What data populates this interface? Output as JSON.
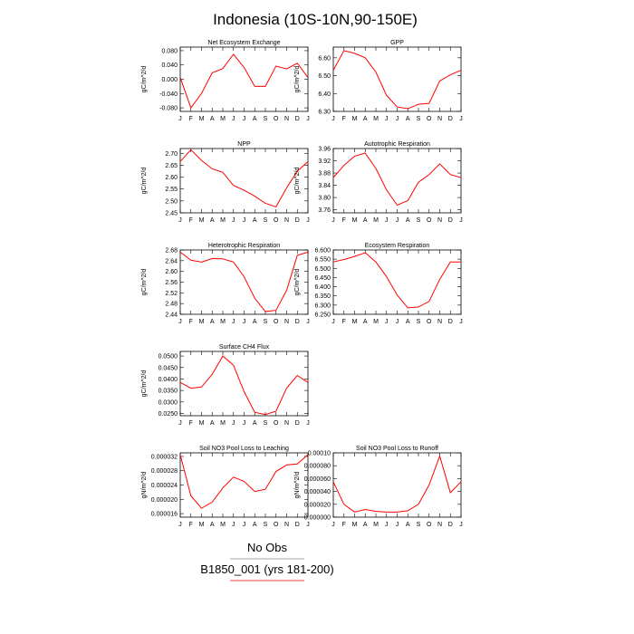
{
  "title": "Indonesia (10S-10N,90-150E)",
  "legend": {
    "items": [
      {
        "label": "No Obs",
        "color": "#888888"
      },
      {
        "label": "B1850_001 (yrs 181-200)",
        "color": "#ff0000"
      }
    ]
  },
  "chart_data": [
    {
      "type": "line",
      "title": "Net Ecosystem Exchange",
      "ylabel": "gC/m^2/d",
      "x": [
        "J",
        "F",
        "M",
        "A",
        "M",
        "J",
        "J",
        "A",
        "S",
        "O",
        "N",
        "D",
        "J"
      ],
      "ylim": [
        -0.09,
        0.09
      ],
      "yticks": [
        -0.08,
        -0.04,
        0.0,
        0.04,
        0.08
      ],
      "ytick_labels": [
        "-0.080",
        "-0.040",
        "0.000",
        "0.040",
        "0.080"
      ],
      "series": [
        {
          "values": [
            0.005,
            -0.08,
            -0.04,
            0.018,
            0.03,
            0.07,
            0.033,
            -0.02,
            -0.02,
            0.037,
            0.029,
            0.045,
            0.005
          ],
          "color": "#ff0000"
        }
      ]
    },
    {
      "type": "line",
      "title": "GPP",
      "ylabel": "gC/m^2/d",
      "x": [
        "J",
        "F",
        "M",
        "A",
        "M",
        "J",
        "J",
        "A",
        "S",
        "O",
        "N",
        "D",
        "J"
      ],
      "ylim": [
        6.3,
        6.66
      ],
      "yticks": [
        6.3,
        6.4,
        6.5,
        6.6
      ],
      "ytick_labels": [
        "6.30",
        "6.40",
        "6.50",
        "6.60"
      ],
      "series": [
        {
          "values": [
            6.53,
            6.64,
            6.625,
            6.6,
            6.52,
            6.39,
            6.325,
            6.315,
            6.34,
            6.345,
            6.47,
            6.505,
            6.53
          ],
          "color": "#ff0000"
        }
      ]
    },
    {
      "type": "line",
      "title": "NPP",
      "ylabel": "gC/m^2/d",
      "x": [
        "J",
        "F",
        "M",
        "A",
        "M",
        "J",
        "J",
        "A",
        "S",
        "O",
        "N",
        "D",
        "J"
      ],
      "ylim": [
        2.45,
        2.72
      ],
      "yticks": [
        2.45,
        2.5,
        2.55,
        2.6,
        2.65,
        2.7
      ],
      "ytick_labels": [
        "2.45",
        "2.50",
        "2.55",
        "2.60",
        "2.65",
        "2.70"
      ],
      "series": [
        {
          "values": [
            2.665,
            2.715,
            2.67,
            2.635,
            2.62,
            2.565,
            2.545,
            2.52,
            2.49,
            2.475,
            2.555,
            2.625,
            2.665
          ],
          "color": "#ff0000"
        }
      ]
    },
    {
      "type": "line",
      "title": "Autotrophic Respiration",
      "ylabel": "gC/m^2/d",
      "x": [
        "J",
        "F",
        "M",
        "A",
        "M",
        "J",
        "J",
        "A",
        "S",
        "O",
        "N",
        "D",
        "J"
      ],
      "ylim": [
        3.75,
        3.96
      ],
      "yticks": [
        3.76,
        3.8,
        3.84,
        3.88,
        3.92,
        3.96
      ],
      "ytick_labels": [
        "3.76",
        "3.80",
        "3.84",
        "3.88",
        "3.92",
        "3.96"
      ],
      "series": [
        {
          "values": [
            3.865,
            3.905,
            3.935,
            3.945,
            3.895,
            3.825,
            3.775,
            3.79,
            3.85,
            3.875,
            3.91,
            3.875,
            3.865
          ],
          "color": "#ff0000"
        }
      ]
    },
    {
      "type": "line",
      "title": "Heterotrophic Respiration",
      "ylabel": "gC/m^2/d",
      "x": [
        "J",
        "F",
        "M",
        "A",
        "M",
        "J",
        "J",
        "A",
        "S",
        "O",
        "N",
        "D",
        "J"
      ],
      "ylim": [
        2.44,
        2.68
      ],
      "yticks": [
        2.44,
        2.48,
        2.52,
        2.56,
        2.6,
        2.64,
        2.68
      ],
      "ytick_labels": [
        "2.44",
        "2.48",
        "2.52",
        "2.56",
        "2.60",
        "2.64",
        "2.68"
      ],
      "series": [
        {
          "values": [
            2.672,
            2.642,
            2.635,
            2.648,
            2.647,
            2.635,
            2.58,
            2.5,
            2.45,
            2.455,
            2.53,
            2.66,
            2.672
          ],
          "color": "#ff0000"
        }
      ]
    },
    {
      "type": "line",
      "title": "Ecosystem Respiration",
      "ylabel": "gC/m^2/d",
      "x": [
        "J",
        "F",
        "M",
        "A",
        "M",
        "J",
        "J",
        "A",
        "S",
        "O",
        "N",
        "D",
        "J"
      ],
      "ylim": [
        6.25,
        6.6
      ],
      "yticks": [
        6.25,
        6.3,
        6.35,
        6.4,
        6.45,
        6.5,
        6.55,
        6.6
      ],
      "ytick_labels": [
        "6.250",
        "6.300",
        "6.350",
        "6.400",
        "6.450",
        "6.500",
        "6.550",
        "6.600"
      ],
      "series": [
        {
          "values": [
            6.535,
            6.548,
            6.565,
            6.585,
            6.535,
            6.455,
            6.355,
            6.285,
            6.29,
            6.32,
            6.44,
            6.535,
            6.535
          ],
          "color": "#ff0000"
        }
      ]
    },
    {
      "type": "line",
      "title": "Surface CH4 Flux",
      "ylabel": "gC/m^2/d",
      "x": [
        "J",
        "F",
        "M",
        "A",
        "M",
        "J",
        "J",
        "A",
        "S",
        "O",
        "N",
        "D",
        "J"
      ],
      "ylim": [
        0.024,
        0.052
      ],
      "yticks": [
        0.025,
        0.03,
        0.035,
        0.04,
        0.045,
        0.05
      ],
      "ytick_labels": [
        "0.0250",
        "0.0300",
        "0.0350",
        "0.0400",
        "0.0450",
        "0.0500"
      ],
      "series": [
        {
          "values": [
            0.0385,
            0.036,
            0.0365,
            0.042,
            0.05,
            0.046,
            0.0345,
            0.0255,
            0.0245,
            0.026,
            0.036,
            0.0415,
            0.0385
          ],
          "color": "#ff0000"
        }
      ]
    },
    {
      "type": "line",
      "title": "Soil NO3 Pool Loss to Leaching",
      "ylabel": "gN/m^2/d",
      "x": [
        "J",
        "F",
        "M",
        "A",
        "M",
        "J",
        "J",
        "A",
        "S",
        "O",
        "N",
        "D",
        "J"
      ],
      "ylim": [
        1.5e-05,
        3.3e-05
      ],
      "yticks": [
        1.6e-05,
        2e-05,
        2.4e-05,
        2.8e-05,
        3.2e-05
      ],
      "ytick_labels": [
        "0.000016",
        "0.000020",
        "0.000024",
        "0.000028",
        "0.000032"
      ],
      "series": [
        {
          "values": [
            3.25e-05,
            2.1e-05,
            1.75e-05,
            1.92e-05,
            2.32e-05,
            2.62e-05,
            2.5e-05,
            2.22e-05,
            2.28e-05,
            2.78e-05,
            2.96e-05,
            2.99e-05,
            3.25e-05
          ],
          "color": "#ff0000"
        }
      ]
    },
    {
      "type": "line",
      "title": "Soil NO3 Pool Loss to Runoff",
      "ylabel": "gN/m^2/d",
      "x": [
        "J",
        "F",
        "M",
        "A",
        "M",
        "J",
        "J",
        "A",
        "S",
        "O",
        "N",
        "D",
        "J"
      ],
      "ylim": [
        0.0,
        0.0001
      ],
      "yticks": [
        0.0,
        2e-05,
        4e-05,
        6e-05,
        8e-05,
        0.0001
      ],
      "ytick_labels": [
        "0.000000",
        "0.000020",
        "0.000040",
        "0.000060",
        "0.000080",
        "0.00010"
      ],
      "series": [
        {
          "values": [
            5.5e-05,
            2e-05,
            8e-06,
            1.2e-05,
            9e-06,
            8e-06,
            8e-06,
            1e-05,
            2e-05,
            5e-05,
            9.5e-05,
            3.8e-05,
            5.5e-05
          ],
          "color": "#ff0000"
        }
      ]
    }
  ]
}
